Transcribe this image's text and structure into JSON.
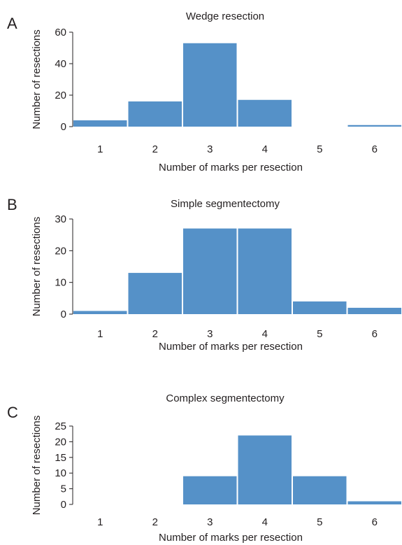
{
  "figure": {
    "bar_color": "#5591c8",
    "axis_color": "#231f20"
  },
  "chart_data": [
    {
      "panel": "A",
      "type": "bar",
      "title": "Wedge resection",
      "xlabel": "Number of marks per resection",
      "ylabel": "Number of resections",
      "categories": [
        "1",
        "2",
        "3",
        "4",
        "5",
        "6"
      ],
      "values": [
        4,
        16,
        53,
        17,
        0,
        1
      ],
      "yticks": [
        "0",
        "20",
        "40",
        "60"
      ],
      "ylim": [
        0,
        60
      ],
      "grid": false,
      "legend": "none"
    },
    {
      "panel": "B",
      "type": "bar",
      "title": "Simple segmentectomy",
      "xlabel": "Number of marks per resection",
      "ylabel": "Number of resections",
      "categories": [
        "1",
        "2",
        "3",
        "4",
        "5",
        "6"
      ],
      "values": [
        1,
        13,
        27,
        27,
        4,
        2
      ],
      "yticks": [
        "0",
        "10",
        "20",
        "30"
      ],
      "ylim": [
        0,
        30
      ],
      "grid": false,
      "legend": "none"
    },
    {
      "panel": "C",
      "type": "bar",
      "title": "Complex segmentectomy",
      "xlabel": "Number of marks per resection",
      "ylabel": "Number of resections",
      "categories": [
        "1",
        "2",
        "3",
        "4",
        "5",
        "6"
      ],
      "values": [
        0,
        0,
        9,
        22,
        9,
        1
      ],
      "yticks": [
        "0",
        "5",
        "10",
        "15",
        "20",
        "25"
      ],
      "ylim": [
        0,
        25
      ],
      "grid": false,
      "legend": "none"
    }
  ]
}
